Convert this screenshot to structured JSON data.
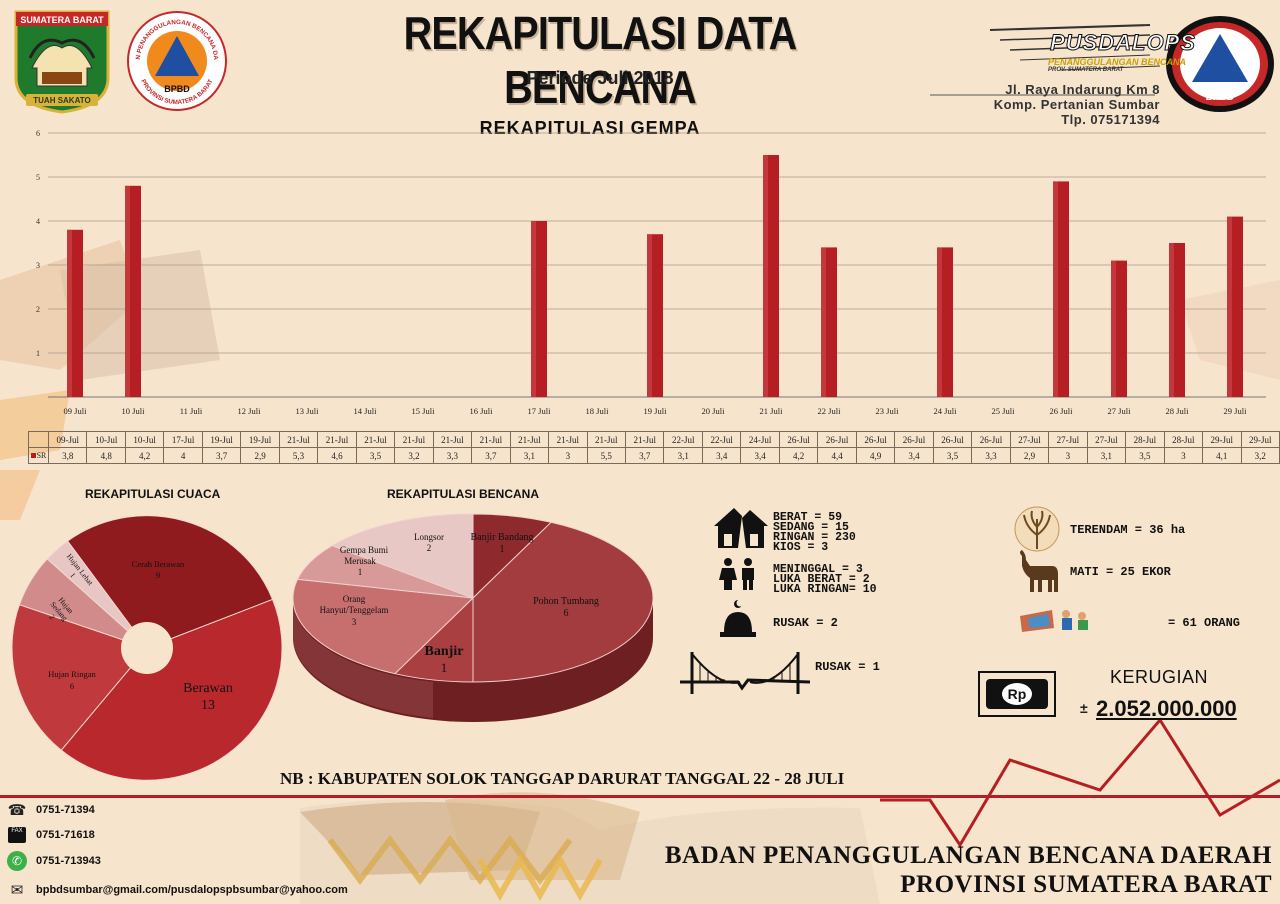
{
  "header": {
    "title": "REKAPITULASI DATA BENCANA",
    "period": "Periode Juli 2018",
    "left_logo_top_text": "SUMATERA BARAT",
    "left_logo_bottom_text": "TUAH SAKATO",
    "bpbd_ring_text_top": "BADAN PENANGGULANGAN BENCANA DAERAH",
    "bpbd_ring_text_bottom": "PROVINSI SUMATERA BARAT",
    "bpbd_badge": "BPBD",
    "pusdalops_title": "PUSDALOPS",
    "pusdalops_sub": "PENANGGULANGAN BENCANA",
    "pusdalops_sub2": "PROV. SUMATERA BARAT",
    "pusdalops_badge": "BPBD",
    "address": [
      "Jl. Raya Indarung Km 8",
      "Komp. Pertanian Sumbar",
      "Tlp. 075171394"
    ]
  },
  "gempa": {
    "title": "REKAPITULASI GEMPA",
    "row_label": "SR",
    "table_dates": [
      "09-Jul",
      "10-Jul",
      "10-Jul",
      "17-Jul",
      "19-Jul",
      "19-Jul",
      "21-Jul",
      "21-Jul",
      "21-Jul",
      "21-Jul",
      "21-Jul",
      "21-Jul",
      "21-Jul",
      "21-Jul",
      "21-Jul",
      "21-Jul",
      "22-Jul",
      "22-Jul",
      "24-Jul",
      "26-Jul",
      "26-Jul",
      "26-Jul",
      "26-Jul",
      "26-Jul",
      "26-Jul",
      "27-Jul",
      "27-Jul",
      "27-Jul",
      "28-Jul",
      "28-Jul",
      "29-Jul",
      "29-Jul"
    ],
    "table_values": [
      "3,8",
      "4,8",
      "4,2",
      "4",
      "3,7",
      "2,9",
      "5,3",
      "4,6",
      "3,5",
      "3,2",
      "3,3",
      "3,7",
      "3,1",
      "3",
      "5,5",
      "3,7",
      "3,1",
      "3,4",
      "3,4",
      "4,2",
      "4,4",
      "4,9",
      "3,4",
      "3,5",
      "3,3",
      "2,9",
      "3",
      "3,1",
      "3,5",
      "3",
      "4,1",
      "3,2"
    ]
  },
  "chart_data": [
    {
      "type": "bar",
      "title": "REKAPITULASI GEMPA",
      "categories": [
        "09 Juli",
        "10 Juli",
        "11 Juli",
        "12 Juli",
        "13 Juli",
        "14 Juli",
        "15 Juli",
        "16 Juli",
        "17 Juli",
        "18 Juli",
        "19 Juli",
        "20 Juli",
        "21 Juli",
        "22 Juli",
        "23 Juli",
        "24 Juli",
        "25 Juli",
        "26 Juli",
        "27 Juli",
        "28 Juli",
        "29 Juli"
      ],
      "values": [
        3.8,
        4.8,
        0,
        0,
        0,
        0,
        0,
        0,
        4.0,
        0,
        3.7,
        0,
        5.5,
        3.4,
        0,
        3.4,
        0,
        4.9,
        3.1,
        3.5,
        4.1
      ],
      "yticks": [
        "1",
        "2",
        "3",
        "4",
        "5",
        "6"
      ],
      "ylim": [
        0,
        6
      ],
      "grid": true,
      "bar_color": "#b51f24"
    },
    {
      "type": "pie",
      "title": "REKAPITULASI CUACA",
      "labels": [
        "Cerah Berawan",
        "Berawan",
        "Hujan Ringan",
        "Hujan Sedang",
        "Hujan Lebat"
      ],
      "values": [
        9,
        13,
        6,
        2,
        1
      ],
      "colors": [
        "#8f1b1f",
        "#b8282c",
        "#c0393c",
        "#d28b8b",
        "#e8c6c4"
      ]
    },
    {
      "type": "pie",
      "title": "REKAPITULASI BENCANA",
      "labels": [
        "Banjir Bandang",
        "Pohon Tumbang",
        "Banjir",
        "Orang Hanyut/Tenggelam",
        "Gempa Bumi Merusak",
        "Longsor"
      ],
      "values": [
        1,
        6,
        1,
        3,
        1,
        2
      ],
      "colors": [
        "#8e2a2d",
        "#a33c3e",
        "#a93f41",
        "#c76f6f",
        "#d79a98",
        "#e8c8c4"
      ]
    }
  ],
  "pie_labels": {
    "cuaca": {
      "cerah_name": "Cerah Berawan",
      "cerah_val": "9",
      "berawan_name": "Berawan",
      "berawan_val": "13",
      "ringan_name": "Hujan Ringan",
      "ringan_val": "6",
      "sedang_name1": "Hujan",
      "sedang_name2": "Sedang",
      "sedang_val": "2",
      "lebat_name": "Hujan Lebat",
      "lebat_val": "1"
    },
    "bencana": {
      "bb_name": "Banjir Bandang",
      "bb_val": "1",
      "pt_name": "Pohon Tumbang",
      "pt_val": "6",
      "banjir_name": "Banjir",
      "banjir_val": "1",
      "oh_name1": "Orang",
      "oh_name2": "Hanyut/Tenggelam",
      "oh_val": "3",
      "gb_name1": "Gempa Bumi",
      "gb_name2": "Merusak",
      "gb_val": "1",
      "lo_name": "Longsor",
      "lo_val": "2"
    }
  },
  "impact": {
    "rumah": [
      "BERAT      = 59",
      "SEDANG     = 15",
      "RINGAN     = 230",
      "KIOS       = 3"
    ],
    "korban": [
      "MENINGGAL  = 3",
      "LUKA BERAT = 2",
      "LUKA RINGAN= 10"
    ],
    "ibadah": "RUSAK         = 2",
    "jembatan": "RUSAK = 1",
    "sawah": "TERENDAM = 36 ha",
    "ternak": "MATI      = 25 EKOR",
    "pengungsi": "= 61  ORANG",
    "rp_badge": "Rp",
    "kerugian_label": "KERUGIAN",
    "kerugian_pm": "±",
    "kerugian_value": "2.052.000.000"
  },
  "note": "NB : KABUPATEN SOLOK TANGGAP DARURAT TANGGAL 22 - 28 JULI",
  "footer": {
    "phone": "0751-71394",
    "fax": "0751-71618",
    "whatsapp": "0751-713943",
    "email": "bpbdsumbar@gmail.com/pusdalopspbsumbar@yahoo.com",
    "fax_tag": "FAX",
    "org_line1": "BADAN PENANGGULANGAN BENCANA DAERAH",
    "org_line2": "PROVINSI SUMATERA BARAT"
  },
  "colors": {
    "accent_red": "#b51f24",
    "dark_red": "#8f1b1f",
    "background": "#f7e4cc",
    "bpbd_orange": "#f08a1c",
    "bpbd_blue": "#1e4fa0"
  }
}
